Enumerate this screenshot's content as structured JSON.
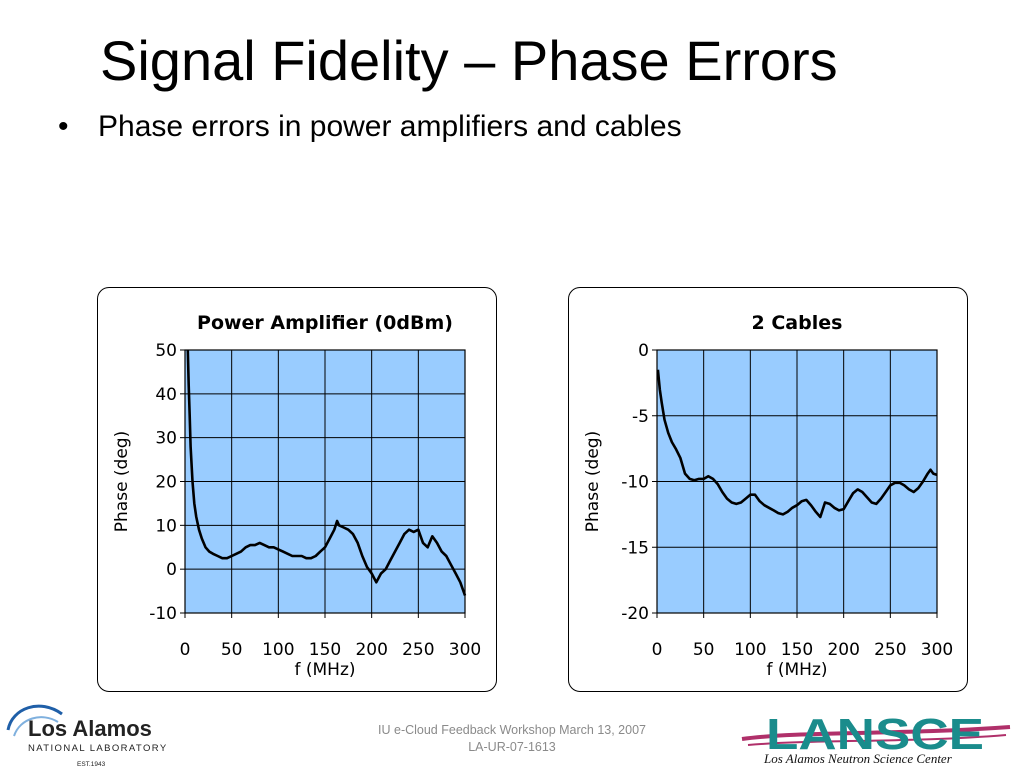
{
  "slide": {
    "title": "Signal Fidelity – Phase Errors",
    "bullet_marker": "•",
    "bullet": "Phase errors in power amplifiers and cables"
  },
  "footer": {
    "line1": "IU e-Cloud Feedback Workshop March 13, 2007",
    "line2": "LA-UR-07-1613"
  },
  "logos": {
    "lanl_name": "Los Alamos",
    "lanl_sub": "NATIONAL LABORATORY",
    "lanl_est": "EST.1943",
    "lansce_name": "LANSCE",
    "lansce_sub": "Los Alamos Neutron Science Center"
  },
  "colors": {
    "plot_bg": "#99ccff",
    "lansce_teal": "#1a8c8c",
    "lansce_swoosh": "#b0306a",
    "lanl_blue": "#1f5fa8"
  },
  "chart_data": [
    {
      "type": "line",
      "title": "Power Amplifier (0dBm)",
      "xlabel": "f (MHz)",
      "ylabel": "Phase (deg)",
      "xlim": [
        0,
        300
      ],
      "ylim": [
        -10,
        50
      ],
      "xticks": [
        0,
        50,
        100,
        150,
        200,
        250,
        300
      ],
      "yticks": [
        50,
        40,
        30,
        20,
        10,
        0,
        -10
      ],
      "grid": true,
      "series": [
        {
          "x": [
            3,
            4,
            5,
            6,
            8,
            10,
            12,
            15,
            18,
            22,
            26,
            30,
            35,
            40,
            45,
            50,
            55,
            60,
            65,
            70,
            75,
            80,
            85,
            90,
            95,
            100,
            105,
            110,
            115,
            120,
            125,
            130,
            135,
            140,
            145,
            150,
            155,
            160,
            163,
            165,
            170,
            175,
            180,
            185,
            190,
            195,
            200,
            205,
            210,
            215,
            220,
            225,
            230,
            235,
            240,
            245,
            250,
            255,
            260,
            265,
            270,
            275,
            280,
            285,
            290,
            295,
            300
          ],
          "y": [
            50,
            42,
            35,
            28,
            20,
            15,
            12,
            9,
            7,
            5,
            4,
            3.5,
            3,
            2.5,
            2.5,
            3,
            3.5,
            4,
            5,
            5.5,
            5.5,
            6,
            5.5,
            5,
            5,
            4.5,
            4,
            3.5,
            3,
            3,
            3,
            2.5,
            2.5,
            3,
            4,
            5,
            7,
            9,
            11,
            10,
            9.5,
            9,
            8,
            6,
            3,
            0.5,
            -1,
            -3,
            -1,
            0,
            2,
            4,
            6,
            8,
            9,
            8.5,
            9,
            6,
            5,
            7.5,
            6,
            4,
            3,
            1,
            -1,
            -3,
            -6
          ]
        }
      ]
    },
    {
      "type": "line",
      "title": "2 Cables",
      "xlabel": "f (MHz)",
      "ylabel": "Phase (deg)",
      "xlim": [
        0,
        300
      ],
      "ylim": [
        -20,
        0
      ],
      "xticks": [
        0,
        50,
        100,
        150,
        200,
        250,
        300
      ],
      "yticks": [
        0,
        -5,
        -10,
        -15,
        -20
      ],
      "grid": true,
      "series": [
        {
          "x": [
            1,
            3,
            5,
            8,
            12,
            16,
            20,
            25,
            30,
            35,
            40,
            45,
            50,
            55,
            60,
            65,
            70,
            75,
            80,
            85,
            90,
            95,
            100,
            105,
            110,
            115,
            120,
            125,
            130,
            135,
            140,
            145,
            150,
            155,
            160,
            165,
            170,
            175,
            180,
            185,
            190,
            195,
            200,
            205,
            210,
            215,
            220,
            225,
            230,
            235,
            240,
            245,
            250,
            255,
            260,
            265,
            270,
            275,
            280,
            285,
            290,
            293,
            296,
            300
          ],
          "y": [
            -1.5,
            -3,
            -4,
            -5.3,
            -6.3,
            -7,
            -7.5,
            -8.2,
            -9.4,
            -9.8,
            -9.9,
            -9.8,
            -9.8,
            -9.6,
            -9.8,
            -10.2,
            -10.8,
            -11.3,
            -11.6,
            -11.7,
            -11.6,
            -11.3,
            -11,
            -11,
            -11.5,
            -11.8,
            -12,
            -12.2,
            -12.4,
            -12.5,
            -12.3,
            -12,
            -11.8,
            -11.5,
            -11.4,
            -11.8,
            -12.3,
            -12.7,
            -11.6,
            -11.7,
            -12,
            -12.2,
            -12.1,
            -11.5,
            -10.9,
            -10.6,
            -10.8,
            -11.2,
            -11.6,
            -11.7,
            -11.3,
            -10.8,
            -10.3,
            -10.1,
            -10.1,
            -10.3,
            -10.6,
            -10.8,
            -10.5,
            -10,
            -9.4,
            -9.1,
            -9.4,
            -9.5
          ]
        }
      ]
    }
  ]
}
